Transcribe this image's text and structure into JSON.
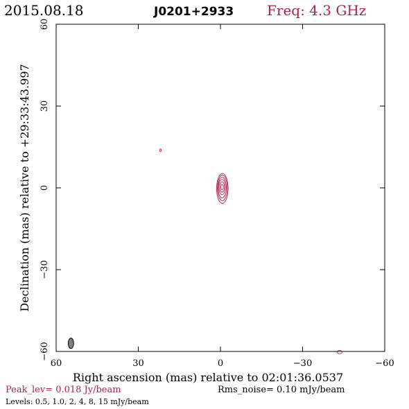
{
  "header": {
    "date": "2015.08.18",
    "source": "J0201+2933",
    "freq": "Freq: 4.3 GHz"
  },
  "footer": {
    "peak": "Peak_lev=  0.018 Jy/beam",
    "rms": "Rms_noise= 0.10 mJy/beam",
    "levels": "Levels: 0.5, 1.0,   2,   4,   8,  15 mJy/beam"
  },
  "colors": {
    "contour": "#b0204a",
    "accent_text": "#b0204a",
    "axis": "#000000",
    "beam_fill": "#808080"
  },
  "chart_data": {
    "type": "contour",
    "xlabel": "Right ascension (mas) relative to 02:01:36.0537",
    "ylabel": "Declination (mas) relative to +29:33:43.997",
    "xlim": [
      60,
      -60
    ],
    "ylim": [
      -60,
      60
    ],
    "xticks": [
      60,
      30,
      0,
      -30,
      -60
    ],
    "yticks": [
      -60,
      -30,
      0,
      30,
      60
    ],
    "x_tick_labels": [
      "60",
      "30",
      "0",
      "−30",
      "−60"
    ],
    "y_tick_labels": [
      "−60",
      "−30",
      "0",
      "30",
      "60"
    ],
    "levels_mJy": [
      0.5,
      1.0,
      2,
      4,
      8,
      15
    ],
    "peak_Jy_per_beam": 0.018,
    "rms_mJy_per_beam": 0.1,
    "core": {
      "x": -0.6,
      "y": 0.3
    },
    "contours": [
      {
        "level": 0.5,
        "rx": 2.1,
        "ry": 5.5,
        "dx": -0.1,
        "dy": -0.5
      },
      {
        "level": 1.0,
        "rx": 1.8,
        "ry": 4.7,
        "dx": -0.1,
        "dy": -0.3
      },
      {
        "level": 2,
        "rx": 1.5,
        "ry": 3.8,
        "dx": -0.05,
        "dy": -0.2
      },
      {
        "level": 4,
        "rx": 1.2,
        "ry": 2.8,
        "dx": 0,
        "dy": 0
      },
      {
        "level": 8,
        "rx": 0.85,
        "ry": 1.9,
        "dx": 0,
        "dy": 0
      },
      {
        "level": 15,
        "rx": 0.45,
        "ry": 1.0,
        "dx": 0,
        "dy": 0
      }
    ],
    "spots": [
      {
        "x": 21.9,
        "y": 13.8,
        "rx": 0.25,
        "ry": 0.5
      },
      {
        "x": -43.5,
        "y": -60.2,
        "rx": 0.9,
        "ry": 0.6
      }
    ],
    "beam": {
      "x": 54.6,
      "y": -57.0,
      "rx": 1.0,
      "ry": 1.9
    }
  }
}
